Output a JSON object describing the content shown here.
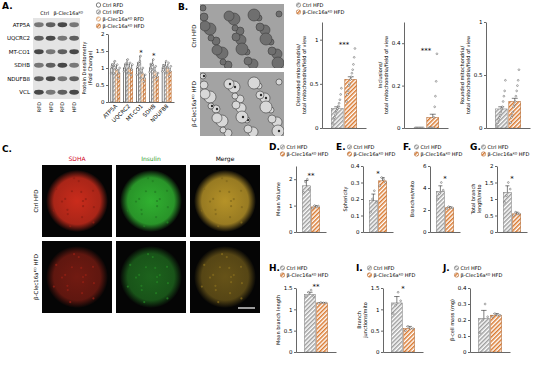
{
  "chart_data": [
    {
      "type": "bar",
      "title": "A.",
      "ylabel": [
        "Protein Densitometry",
        "(Fold Change)"
      ],
      "categories": [
        "ATP5A",
        "UQCRC2",
        "MT-CO1",
        "SDHB",
        "NDUFB8"
      ],
      "ylim": [
        0,
        2
      ],
      "yticks": [
        0,
        0.5,
        1,
        1.5,
        2
      ],
      "legend": "top",
      "series": [
        {
          "name": "Ctrl RFD",
          "color": "#ffffff",
          "values": [
            1,
            1,
            1,
            1,
            1
          ],
          "errors": [
            0.12,
            0.1,
            0.15,
            0.12,
            0.1
          ],
          "points": [
            [
              0.85,
              1.05,
              1.1
            ],
            [
              0.9,
              1.0,
              1.12
            ],
            [
              0.8,
              1.05,
              1.15
            ],
            [
              0.88,
              1.0,
              1.12
            ],
            [
              0.9,
              1.02,
              1.08
            ]
          ]
        },
        {
          "name": "Ctrl HFD",
          "color": "#9e9e9e",
          "values": [
            1.05,
            1.1,
            1.15,
            1.1,
            1.05
          ],
          "errors": [
            0.15,
            0.15,
            0.2,
            0.15,
            0.12
          ],
          "points": [
            [
              0.85,
              1.1,
              1.2
            ],
            [
              0.9,
              1.15,
              1.25
            ],
            [
              0.9,
              1.2,
              1.35
            ],
            [
              0.95,
              1.1,
              1.25
            ],
            [
              0.9,
              1.05,
              1.2
            ]
          ]
        },
        {
          "name": "β-Clec16aᴷᴼ RFD",
          "color": "#f5b985",
          "values": [
            0.95,
            1.0,
            0.85,
            0.9,
            1.0
          ],
          "errors": [
            0.12,
            0.12,
            0.12,
            0.12,
            0.1
          ],
          "points": [
            [
              0.8,
              0.95,
              1.1
            ],
            [
              0.85,
              1.0,
              1.15
            ],
            [
              0.7,
              0.85,
              1.0
            ],
            [
              0.75,
              0.9,
              1.05
            ],
            [
              0.85,
              1.0,
              1.15
            ]
          ]
        },
        {
          "name": "β-Clec16aᴷᴼ HFD",
          "color": "#d9782d",
          "values": [
            0.85,
            0.95,
            0.7,
            0.75,
            0.9
          ],
          "errors": [
            0.1,
            0.12,
            0.1,
            0.1,
            0.1
          ],
          "points": [
            [
              0.7,
              0.85,
              1.0
            ],
            [
              0.8,
              0.95,
              1.1
            ],
            [
              0.6,
              0.7,
              0.8
            ],
            [
              0.65,
              0.75,
              0.85
            ],
            [
              0.75,
              0.9,
              1.05
            ]
          ]
        }
      ],
      "annotations": [
        {
          "text": "*",
          "category": "MT-CO1"
        },
        {
          "text": "*",
          "category": "SDHB"
        }
      ]
    },
    {
      "type": "bar",
      "ylabel": [
        "Distended mitochondria/",
        "total mitochondria/field of view"
      ],
      "categories": [
        null
      ],
      "ylim": [
        0,
        1.2
      ],
      "yticks": [
        0,
        0.5,
        1
      ],
      "legend": "top",
      "series": [
        {
          "name": "Ctrl HFD",
          "color": "#9e9e9e",
          "values": [
            0.22
          ],
          "errors": [
            0.02
          ],
          "points": [
            [
              0.05,
              0.1,
              0.12,
              0.15,
              0.18,
              0.2,
              0.22,
              0.25,
              0.28,
              0.32,
              0.38,
              0.45
            ]
          ]
        },
        {
          "name": "β-Clec16aᴷᴼ HFD",
          "color": "#d9782d",
          "values": [
            0.55
          ],
          "errors": [
            0.03
          ],
          "points": [
            [
              0.3,
              0.38,
              0.42,
              0.48,
              0.5,
              0.55,
              0.58,
              0.62,
              0.66,
              0.72,
              0.8,
              0.9
            ]
          ]
        }
      ],
      "annotations": [
        {
          "text": "***"
        }
      ]
    },
    {
      "type": "bar",
      "ylabel": [
        "Inclusions/",
        "total mitochondria/field of view"
      ],
      "categories": [
        null
      ],
      "ylim": [
        0,
        0.5
      ],
      "yticks": [
        0,
        0.2,
        0.4
      ],
      "series": [
        {
          "color": "#9e9e9e",
          "values": [
            0
          ],
          "errors": [
            0
          ],
          "points": [
            [
              0,
              0,
              0,
              0,
              0,
              0,
              0,
              0,
              0,
              0,
              0,
              0
            ]
          ]
        },
        {
          "color": "#d9782d",
          "values": [
            0.05
          ],
          "errors": [
            0.015
          ],
          "points": [
            [
              0,
              0,
              0,
              0,
              0,
              0,
              0,
              0.05,
              0.1,
              0.15,
              0.22,
              0.35
            ]
          ]
        }
      ],
      "annotations": [
        {
          "text": "***"
        }
      ]
    },
    {
      "type": "bar",
      "ylabel": [
        "Rounded mitochondria/",
        "total mitochondria/field of view"
      ],
      "categories": [
        null
      ],
      "ylim": [
        0,
        1
      ],
      "yticks": [
        0,
        0.5,
        1
      ],
      "series": [
        {
          "color": "#9e9e9e",
          "values": [
            0.18
          ],
          "errors": [
            0.02
          ],
          "points": [
            [
              0.02,
              0.05,
              0.08,
              0.1,
              0.12,
              0.15,
              0.18,
              0.2,
              0.25,
              0.3,
              0.35,
              0.45
            ]
          ]
        },
        {
          "color": "#d9782d",
          "values": [
            0.25
          ],
          "errors": [
            0.03
          ],
          "points": [
            [
              0.05,
              0.1,
              0.12,
              0.15,
              0.2,
              0.22,
              0.25,
              0.3,
              0.35,
              0.4,
              0.45,
              0.55
            ]
          ]
        }
      ]
    },
    {
      "type": "bar",
      "title": "D.",
      "ylabel": [
        "Mean Volume"
      ],
      "categories": [
        null
      ],
      "ylim": [
        0,
        2.5
      ],
      "yticks": [
        0,
        1,
        2
      ],
      "legend": "top",
      "series": [
        {
          "name": "Ctrl HFD",
          "color": "#9e9e9e",
          "values": [
            1.75
          ],
          "errors": [
            0.2
          ],
          "points": [
            [
              1.5,
              1.9,
              2.0,
              1.6
            ]
          ]
        },
        {
          "name": "β-Clec16aᴷᴼ HFD",
          "color": "#d9782d",
          "values": [
            0.95
          ],
          "errors": [
            0.05
          ],
          "points": [
            [
              0.9,
              1.0,
              0.95,
              0.98
            ]
          ]
        }
      ],
      "annotations": [
        {
          "text": "**"
        }
      ]
    },
    {
      "type": "bar",
      "title": "E.",
      "ylabel": [
        "Sphericity"
      ],
      "categories": [
        null
      ],
      "ylim": [
        0,
        0.4
      ],
      "yticks": [
        0,
        0.1,
        0.2,
        0.3,
        0.4
      ],
      "legend": "top",
      "series": [
        {
          "name": "Ctrl HFD",
          "color": "#9e9e9e",
          "values": [
            0.19
          ],
          "errors": [
            0.04
          ],
          "points": [
            [
              0.12,
              0.2,
              0.25,
              0.18
            ]
          ]
        },
        {
          "name": "β-Clec16aᴷᴼ HFD",
          "color": "#d9782d",
          "values": [
            0.31
          ],
          "errors": [
            0.02
          ],
          "points": [
            [
              0.28,
              0.33,
              0.32,
              0.3
            ]
          ]
        }
      ],
      "annotations": [
        {
          "text": "*"
        }
      ]
    },
    {
      "type": "bar",
      "title": "F.",
      "ylabel": [
        "Branches/mito"
      ],
      "categories": [
        null
      ],
      "ylim": [
        0,
        6
      ],
      "yticks": [
        0,
        2,
        4,
        6
      ],
      "legend": "top",
      "series": [
        {
          "name": "Ctrl HFD",
          "color": "#9e9e9e",
          "values": [
            3.7
          ],
          "errors": [
            0.5
          ],
          "points": [
            [
              3,
              3.5,
              4.5,
              3.8
            ]
          ]
        },
        {
          "name": "β-Clec16aᴷᴼ HFD",
          "color": "#d9782d",
          "values": [
            2.2
          ],
          "errors": [
            0.1
          ],
          "points": [
            [
              2.1,
              2.3,
              2.2,
              2.2
            ]
          ]
        }
      ],
      "annotations": [
        {
          "text": "*"
        }
      ]
    },
    {
      "type": "bar",
      "title": "G.",
      "ylabel": [
        "Total branch",
        "length/mito"
      ],
      "categories": [
        null
      ],
      "ylim": [
        0,
        2
      ],
      "yticks": [
        0,
        0.5,
        1,
        1.5,
        2
      ],
      "legend": "top",
      "series": [
        {
          "name": "Ctrl HFD",
          "color": "#9e9e9e",
          "values": [
            1.2
          ],
          "errors": [
            0.2
          ],
          "points": [
            [
              0.9,
              1.1,
              1.5,
              1.3
            ]
          ]
        },
        {
          "name": "β-Clec16aᴷᴼ HFD",
          "color": "#d9782d",
          "values": [
            0.55
          ],
          "errors": [
            0.05
          ],
          "points": [
            [
              0.5,
              0.6,
              0.55,
              0.55
            ]
          ]
        }
      ],
      "annotations": [
        {
          "text": "*"
        }
      ]
    },
    {
      "type": "bar",
      "title": "H.",
      "ylabel": [
        "Mean branch length"
      ],
      "categories": [
        null
      ],
      "ylim": [
        0,
        1.5
      ],
      "yticks": [
        0,
        0.5,
        1,
        1.5
      ],
      "legend": "top",
      "series": [
        {
          "name": "Ctrl HFD",
          "color": "#9e9e9e",
          "values": [
            1.35
          ],
          "errors": [
            0.05
          ],
          "points": [
            [
              1.3,
              1.4,
              1.45,
              1.3
            ]
          ]
        },
        {
          "name": "β-Clec16aᴷᴼ HFD",
          "color": "#d9782d",
          "values": [
            1.15
          ],
          "errors": [
            0.01
          ],
          "points": [
            [
              1.14,
              1.16,
              1.15,
              1.15
            ]
          ]
        }
      ],
      "annotations": [
        {
          "text": "**"
        }
      ]
    },
    {
      "type": "bar",
      "title": "I.",
      "ylabel": [
        "Branch",
        "junctions/mito"
      ],
      "categories": [
        null
      ],
      "ylim": [
        0,
        1.5
      ],
      "yticks": [
        0,
        0.5,
        1,
        1.5
      ],
      "legend": "top",
      "series": [
        {
          "name": "Ctrl HFD",
          "color": "#9e9e9e",
          "values": [
            1.15
          ],
          "errors": [
            0.15
          ],
          "points": [
            [
              0.9,
              1.1,
              1.4,
              1.2
            ]
          ]
        },
        {
          "name": "β-Clec16aᴷᴼ HFD",
          "color": "#d9782d",
          "values": [
            0.55
          ],
          "errors": [
            0.05
          ],
          "points": [
            [
              0.5,
              0.6,
              0.55,
              0.55
            ]
          ]
        }
      ],
      "annotations": [
        {
          "text": "*"
        }
      ]
    },
    {
      "type": "bar",
      "title": "J.",
      "ylabel": [
        "β-cell mass (mg)"
      ],
      "categories": [
        null
      ],
      "ylim": [
        0,
        0.4
      ],
      "yticks": [
        0,
        0.1,
        0.2,
        0.3,
        0.4
      ],
      "legend": "top",
      "series": [
        {
          "name": "Ctrl HFD",
          "color": "#9e9e9e",
          "values": [
            0.21
          ],
          "errors": [
            0.05
          ],
          "points": [
            [
              0.12,
              0.2,
              0.3,
              0.22
            ]
          ]
        },
        {
          "name": "β-Clec16aᴷᴼ HFD",
          "color": "#d9782d",
          "values": [
            0.23
          ],
          "errors": [
            0.01
          ],
          "points": [
            [
              0.22,
              0.24,
              0.23,
              0.23
            ]
          ]
        }
      ]
    }
  ],
  "figure": {
    "blot": {
      "rows": [
        "ATP5A",
        "UQCRC2",
        "MT-CO1",
        "SDHB",
        "NDUFB8",
        "VCL"
      ],
      "groups": [
        "Ctrl",
        "β-Clec16aᴷᴼ"
      ],
      "lanes": [
        "RFD",
        "HFD",
        "RFD",
        "HFD"
      ]
    },
    "micrographs": {
      "title": "B.",
      "rows": [
        "Ctrl HFD",
        "β-Clec16aᴷᴼ HFD"
      ]
    },
    "fluorescence": {
      "title": "C.",
      "columns": [
        "SDHA",
        "Insulin",
        "Merge"
      ],
      "rows": [
        "Ctrl HFD",
        "β-Clec16aᴷᴼ HFD"
      ]
    }
  }
}
